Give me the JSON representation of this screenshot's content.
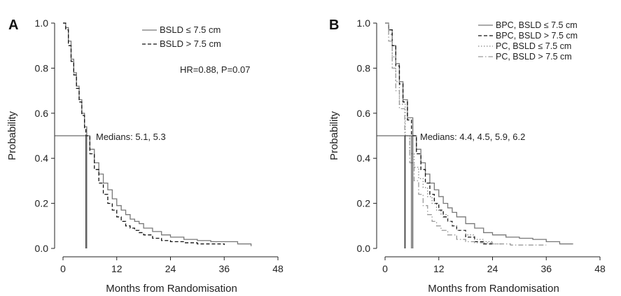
{
  "chart_data": [
    {
      "panel_label": "A",
      "type": "line",
      "xlabel": "Months from Randomisation",
      "ylabel": "Probability",
      "xlim": [
        0,
        48
      ],
      "ylim": [
        0,
        1.0
      ],
      "x_ticks": [
        "0",
        "12",
        "24",
        "36",
        "48"
      ],
      "y_ticks": [
        "0.0",
        "0.2",
        "0.4",
        "0.6",
        "0.8",
        "1.0"
      ],
      "legend_position": "top-right",
      "annotations": {
        "stats": "HR=0.88, P=0.07",
        "medians": "Medians: 5.1, 5.3"
      },
      "median_line_y": 0.5,
      "medians": [
        5.1,
        5.3
      ],
      "series": [
        {
          "name": "BSLD ≤ 7.5 cm",
          "color": "#777777",
          "dash": "solid",
          "x": [
            0,
            0.6,
            1.2,
            1.8,
            2.4,
            3.0,
            3.6,
            4.2,
            4.8,
            5.3,
            6,
            7,
            8,
            9,
            10,
            11,
            12,
            13,
            14,
            15,
            16,
            17,
            18,
            20,
            22,
            24,
            27,
            30,
            33,
            36,
            39,
            42
          ],
          "y": [
            1.0,
            0.98,
            0.92,
            0.84,
            0.78,
            0.72,
            0.66,
            0.6,
            0.54,
            0.5,
            0.44,
            0.38,
            0.33,
            0.29,
            0.26,
            0.22,
            0.19,
            0.17,
            0.15,
            0.13,
            0.12,
            0.11,
            0.09,
            0.075,
            0.06,
            0.05,
            0.04,
            0.035,
            0.03,
            0.03,
            0.02,
            0.01
          ]
        },
        {
          "name": "BSLD > 7.5 cm",
          "color": "#111111",
          "dash": "dashed",
          "x": [
            0,
            0.6,
            1.2,
            1.8,
            2.4,
            3.0,
            3.6,
            4.2,
            4.8,
            5.1,
            6,
            7,
            8,
            9,
            10,
            11,
            12,
            13,
            14,
            15,
            16,
            17,
            18,
            20,
            22,
            24,
            27,
            30,
            33,
            36
          ],
          "y": [
            1.0,
            0.97,
            0.9,
            0.83,
            0.77,
            0.71,
            0.65,
            0.59,
            0.53,
            0.5,
            0.42,
            0.35,
            0.29,
            0.24,
            0.2,
            0.17,
            0.14,
            0.12,
            0.1,
            0.09,
            0.08,
            0.07,
            0.06,
            0.045,
            0.035,
            0.03,
            0.025,
            0.02,
            0.02,
            0.015
          ]
        }
      ]
    },
    {
      "panel_label": "B",
      "type": "line",
      "xlabel": "Months from Randomisation",
      "ylabel": "Probability",
      "xlim": [
        0,
        48
      ],
      "ylim": [
        0,
        1.0
      ],
      "x_ticks": [
        "0",
        "12",
        "24",
        "36",
        "48"
      ],
      "y_ticks": [
        "0.0",
        "0.2",
        "0.4",
        "0.6",
        "0.8",
        "1.0"
      ],
      "legend_position": "top-right",
      "annotations": {
        "medians": "Medians: 4.4, 4.5, 5.9, 6.2"
      },
      "median_line_y": 0.5,
      "medians": [
        4.4,
        4.5,
        5.9,
        6.2
      ],
      "series": [
        {
          "name": "BPC, BSLD ≤ 7.5 cm",
          "color": "#777777",
          "dash": "solid",
          "x": [
            0,
            0.8,
            1.6,
            2.4,
            3.2,
            4,
            5,
            6.2,
            7,
            8,
            9,
            10,
            11,
            12,
            13,
            14,
            15,
            16,
            18,
            20,
            22,
            24,
            27,
            30,
            33,
            36,
            39,
            42
          ],
          "y": [
            1.0,
            0.97,
            0.9,
            0.82,
            0.74,
            0.66,
            0.58,
            0.5,
            0.44,
            0.38,
            0.33,
            0.29,
            0.26,
            0.23,
            0.2,
            0.18,
            0.16,
            0.14,
            0.11,
            0.09,
            0.07,
            0.06,
            0.05,
            0.045,
            0.04,
            0.03,
            0.02,
            0.02
          ]
        },
        {
          "name": "BPC, BSLD > 7.5 cm",
          "color": "#111111",
          "dash": "dashed",
          "x": [
            0,
            0.8,
            1.6,
            2.4,
            3.2,
            4,
            5,
            5.9,
            7,
            8,
            9,
            10,
            11,
            12,
            13,
            14,
            15,
            16,
            18,
            20,
            22,
            24
          ],
          "y": [
            1.0,
            0.97,
            0.9,
            0.81,
            0.73,
            0.65,
            0.57,
            0.5,
            0.42,
            0.35,
            0.29,
            0.24,
            0.2,
            0.17,
            0.14,
            0.12,
            0.1,
            0.08,
            0.05,
            0.03,
            0.02,
            0.015
          ]
        },
        {
          "name": "PC, BSLD ≤ 7.5 cm",
          "color": "#888888",
          "dash": "dotted",
          "x": [
            0,
            0.8,
            1.6,
            2.4,
            3.2,
            4.5,
            5.5,
            6.5,
            7.5,
            8.5,
            9.5,
            10.5,
            11.5,
            12.5,
            14,
            15,
            16,
            18,
            20,
            22,
            24,
            26
          ],
          "y": [
            1.0,
            0.95,
            0.85,
            0.74,
            0.64,
            0.5,
            0.42,
            0.36,
            0.31,
            0.27,
            0.23,
            0.2,
            0.17,
            0.15,
            0.12,
            0.1,
            0.08,
            0.06,
            0.04,
            0.03,
            0.02,
            0.015
          ]
        },
        {
          "name": "PC, BSLD > 7.5 cm",
          "color": "#999999",
          "dash": "dashdot",
          "x": [
            0,
            0.8,
            1.6,
            2.4,
            3.2,
            4.4,
            5.5,
            6.5,
            7.5,
            8.5,
            9.5,
            10.5,
            11.5,
            12.5,
            14,
            16,
            18,
            20,
            24,
            28,
            32,
            36
          ],
          "y": [
            1.0,
            0.92,
            0.8,
            0.7,
            0.62,
            0.5,
            0.38,
            0.3,
            0.24,
            0.19,
            0.15,
            0.12,
            0.1,
            0.08,
            0.06,
            0.04,
            0.03,
            0.025,
            0.02,
            0.015,
            0.015,
            0.015
          ]
        }
      ]
    }
  ]
}
